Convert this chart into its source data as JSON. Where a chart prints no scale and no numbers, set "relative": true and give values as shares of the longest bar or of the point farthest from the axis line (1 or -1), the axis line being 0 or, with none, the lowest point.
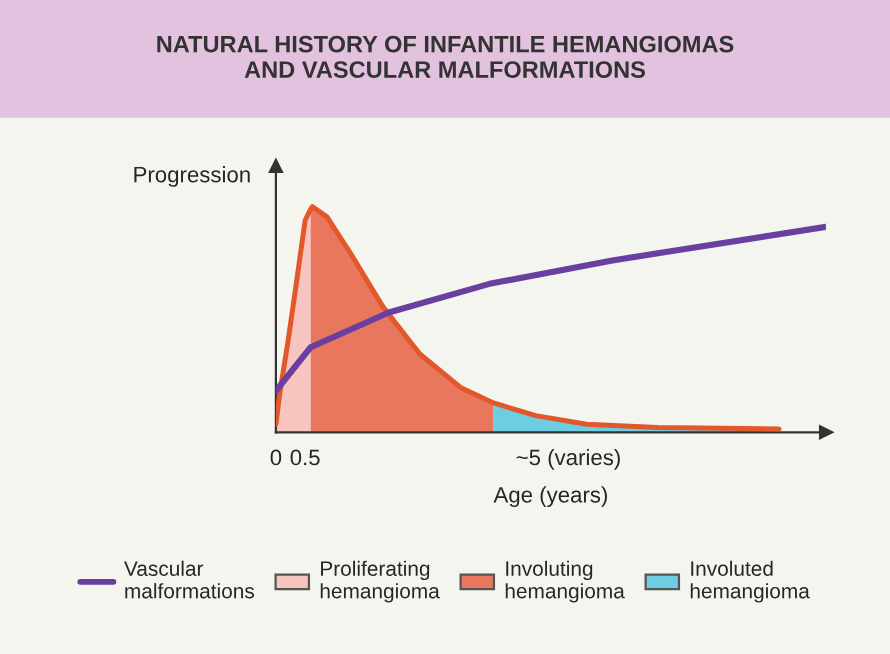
{
  "chart_data": {
    "type": "area",
    "title": "NATURAL HISTORY OF INFANTILE HEMANGIOMAS\nAND VASCULAR MALFORMATIONS",
    "xlabel": "Age (years)",
    "ylabel": "Progression",
    "relative": true,
    "xlim": [
      0,
      9.4
    ],
    "xticks": [
      0,
      0.5,
      {
        "value": 5,
        "label": "~5 (varies)"
      }
    ],
    "grid": false,
    "legend": "bottom",
    "series": [
      {
        "name": "Vascular malformations",
        "type": "line",
        "color": "#6a3fa0",
        "x": [
          0,
          0.594,
          1.93,
          3.65,
          5.75,
          9.4
        ],
        "values": [
          0.184,
          0.377,
          0.531,
          0.658,
          0.762,
          0.911
        ]
      },
      {
        "type": "line",
        "color": "#e2582a",
        "x": [
          0,
          0.064,
          0.209,
          0.356,
          0.5,
          0.594,
          0.626,
          0.873,
          1.278,
          1.833,
          2.46,
          3.155,
          3.72,
          4.44,
          5.31,
          6.52,
          8.6
        ],
        "values": [
          0.036,
          0.169,
          0.406,
          0.673,
          0.94,
          0.99,
          1.0,
          0.955,
          0.792,
          0.555,
          0.347,
          0.199,
          0.13,
          0.074,
          0.036,
          0.021,
          0.015
        ]
      },
      {
        "name": "Proliferating hemangioma",
        "color": "#f7c4c0",
        "x": [
          0,
          0.064,
          0.209,
          0.356,
          0.5,
          0.594
        ],
        "values": [
          0.036,
          0.169,
          0.406,
          0.673,
          0.94,
          0.99
        ]
      },
      {
        "name": "Involuting hemangioma",
        "color": "#e9775e",
        "x": [
          0.594,
          0.626,
          0.873,
          1.278,
          1.833,
          2.46,
          3.155,
          3.72
        ],
        "values": [
          0.99,
          1.0,
          0.955,
          0.792,
          0.555,
          0.347,
          0.199,
          0.13
        ]
      },
      {
        "name": "Involuted hemangioma",
        "color": "#6dcde3",
        "x": [
          3.72,
          4.44,
          5.31,
          6.52,
          8.6
        ],
        "values": [
          0.13,
          0.074,
          0.036,
          0.021,
          0.015
        ]
      }
    ]
  }
}
